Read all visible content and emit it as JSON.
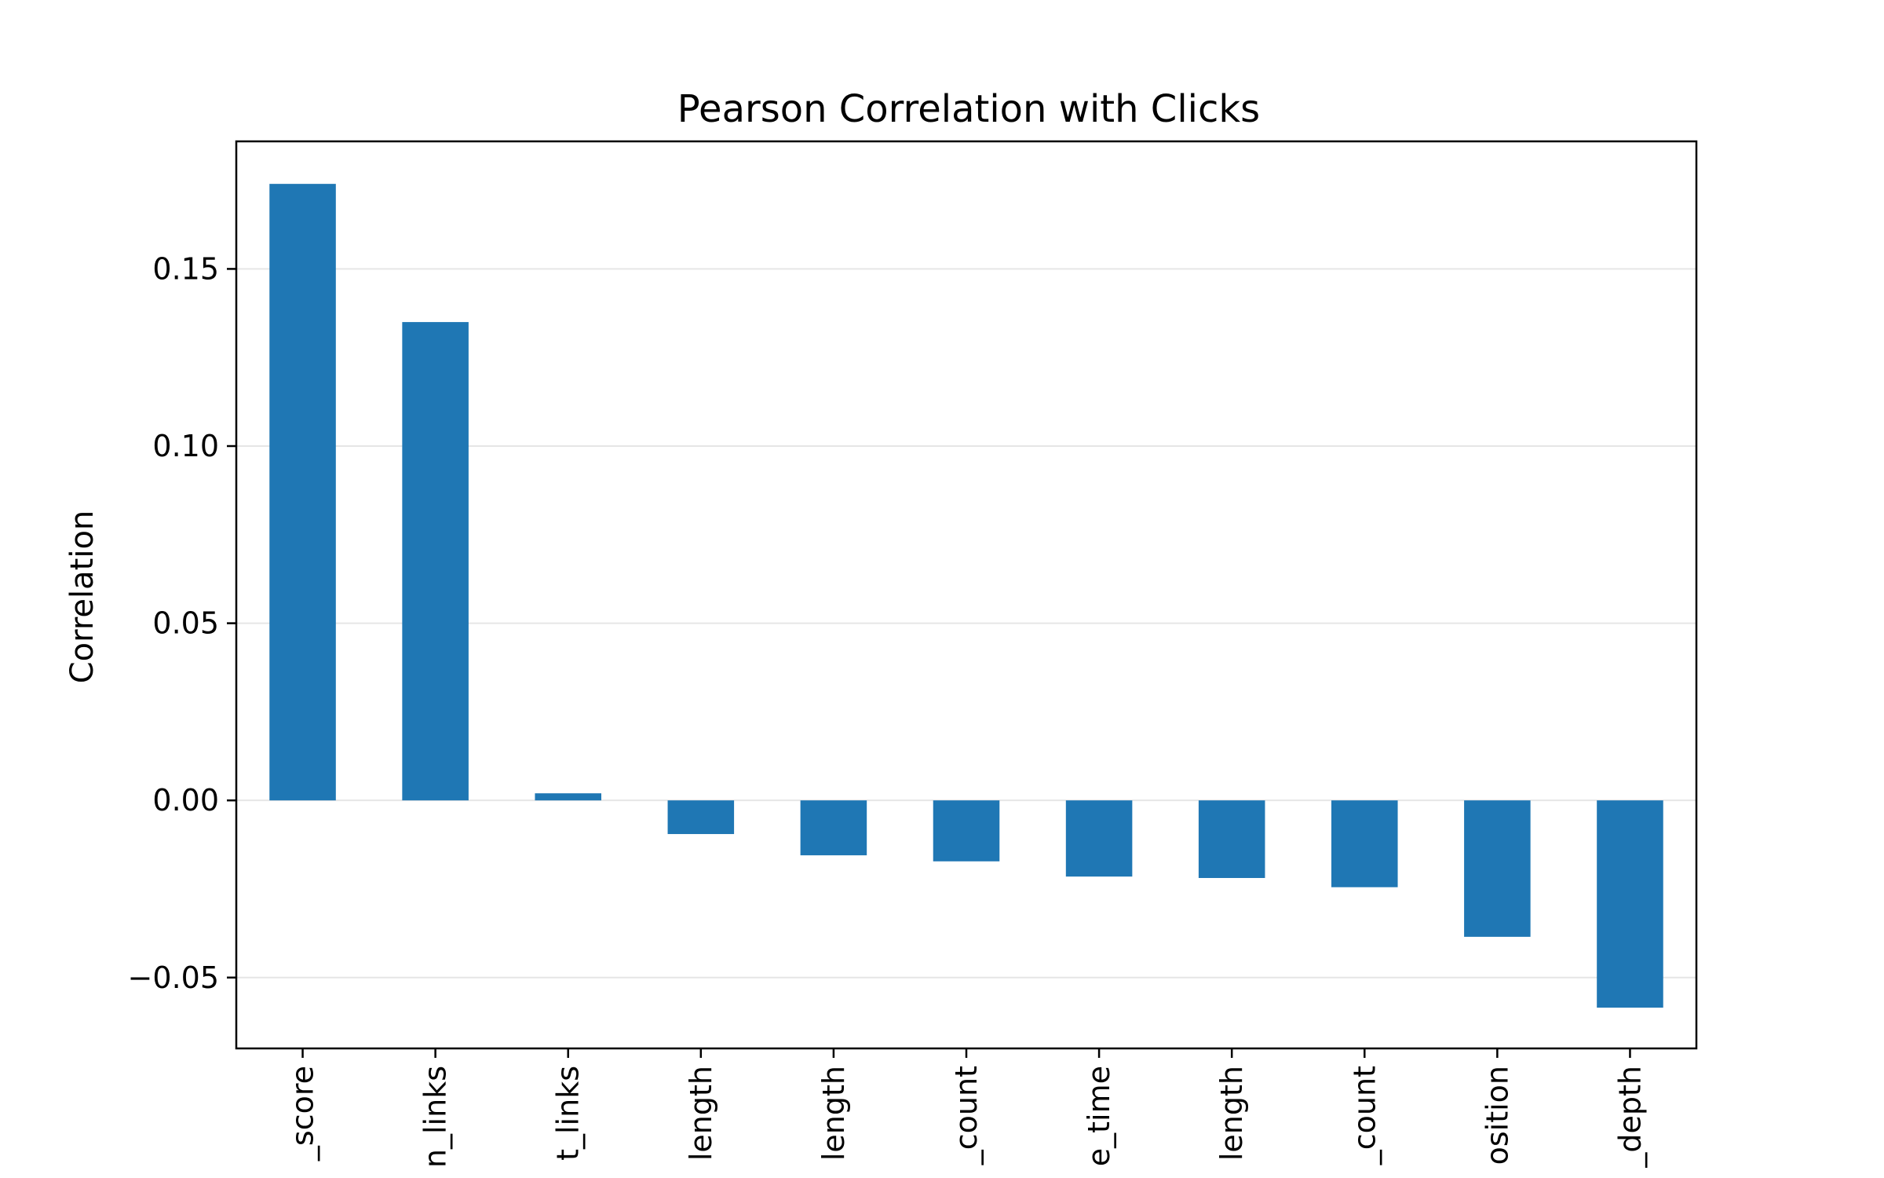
{
  "chart_data": {
    "type": "bar",
    "title": "Pearson Correlation with Clicks",
    "xlabel": "",
    "ylabel": "Correlation",
    "categories": [
      "_score",
      "n_links",
      "t_links",
      "length",
      "length",
      "_count",
      "e_time",
      "length",
      "_count",
      "osition",
      "_depth"
    ],
    "values": [
      0.174,
      0.135,
      0.002,
      -0.0095,
      -0.0155,
      -0.0172,
      -0.0215,
      -0.0219,
      -0.0245,
      -0.0385,
      -0.0585
    ],
    "ylim": [
      -0.07,
      0.186
    ],
    "yticks": [
      -0.05,
      0.0,
      0.05,
      0.1,
      0.15
    ],
    "ytick_labels": [
      "−0.05",
      "0.00",
      "0.05",
      "0.10",
      "0.15"
    ],
    "grid": "y",
    "legend": "none",
    "bar_color": "#1f77b4",
    "grid_color": "#e6e6e6"
  }
}
